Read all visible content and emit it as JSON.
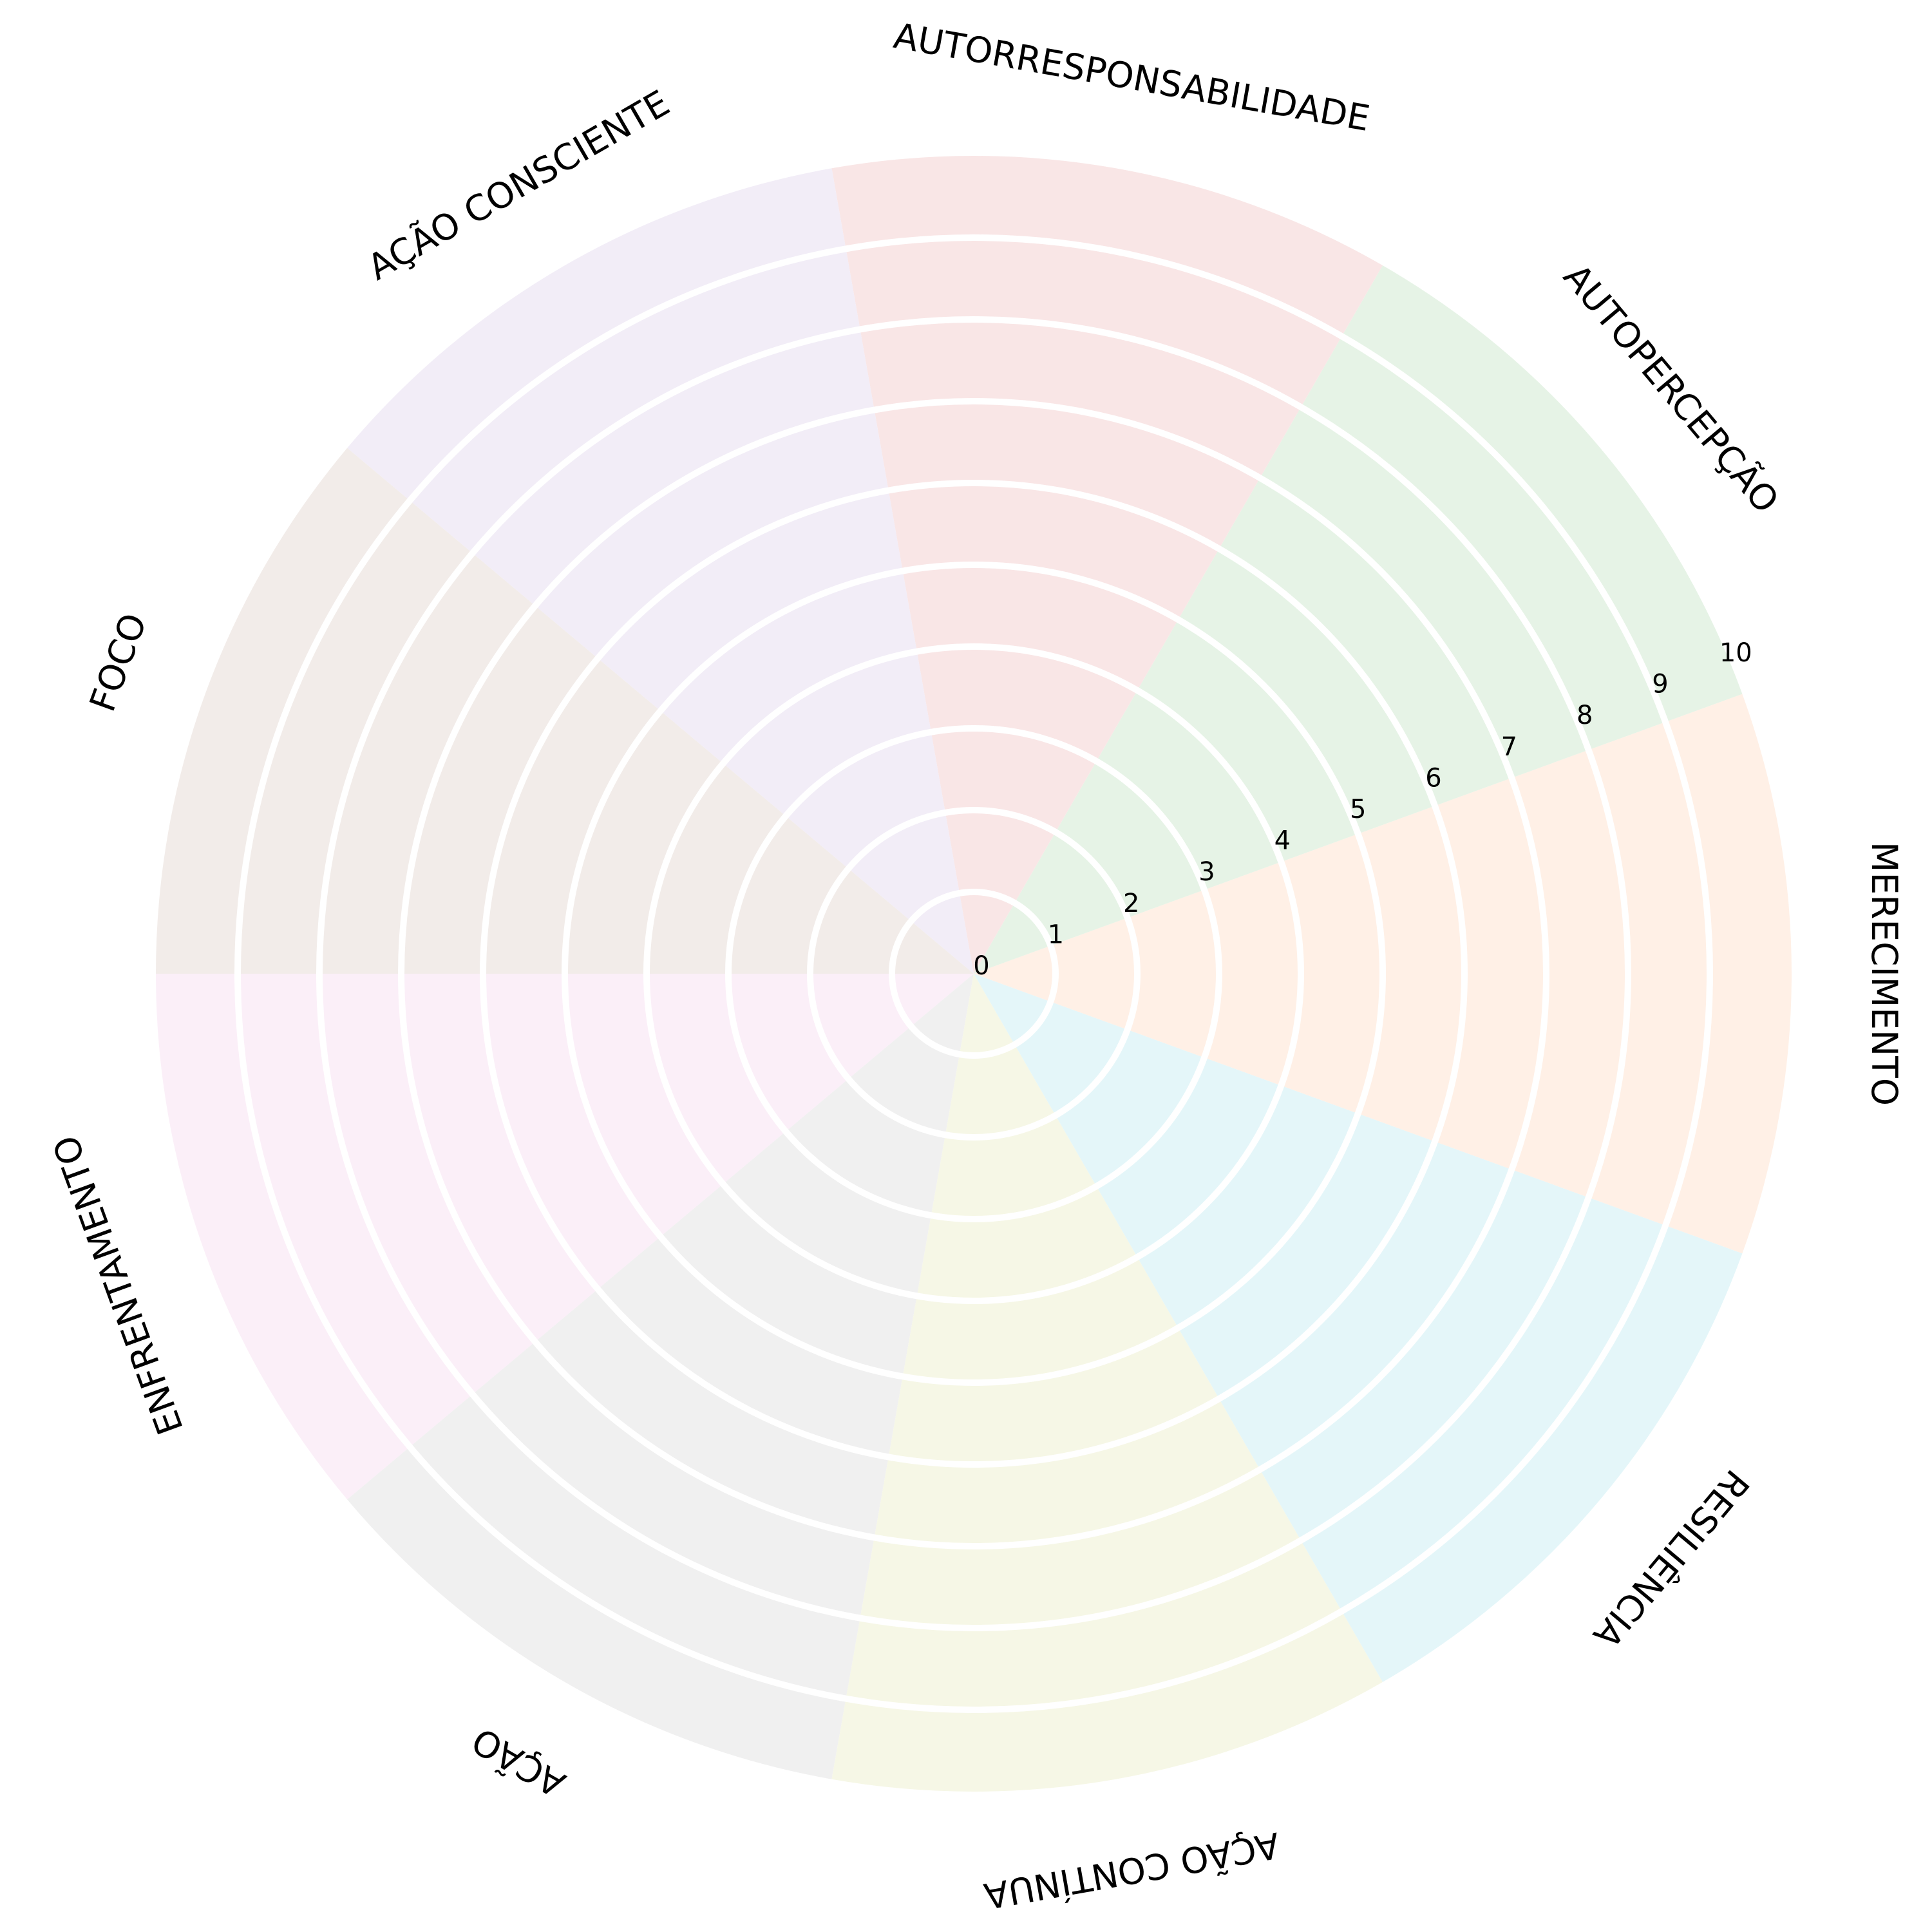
{
  "chart_data": {
    "type": "polar-area",
    "title": "",
    "categories": [
      "MERECIMENTO",
      "AUTOPERCEPÇÃO",
      "AUTORRESPONSABILIDADE",
      "AÇÃO CONSCIENTE",
      "FOCO",
      "ENFRENTAMENTO",
      "AÇÃO",
      "AÇÃO CONTÍNUA",
      "RESILIÊNCIA"
    ],
    "sector_colors": [
      "#fff0e6",
      "#e6f3e6",
      "#f9e6e6",
      "#f2edf7",
      "#f2ece9",
      "#fbeff8",
      "#f0f0f0",
      "#f6f7e6",
      "#e4f6f9"
    ],
    "values": [
      10,
      10,
      10,
      10,
      10,
      10,
      10,
      10,
      10
    ],
    "rlim": [
      0,
      10
    ],
    "rticks": [
      "0",
      "1",
      "2",
      "3",
      "4",
      "5",
      "6",
      "7",
      "8",
      "9",
      "10"
    ],
    "grid": true,
    "grid_color": "#ffffff"
  }
}
